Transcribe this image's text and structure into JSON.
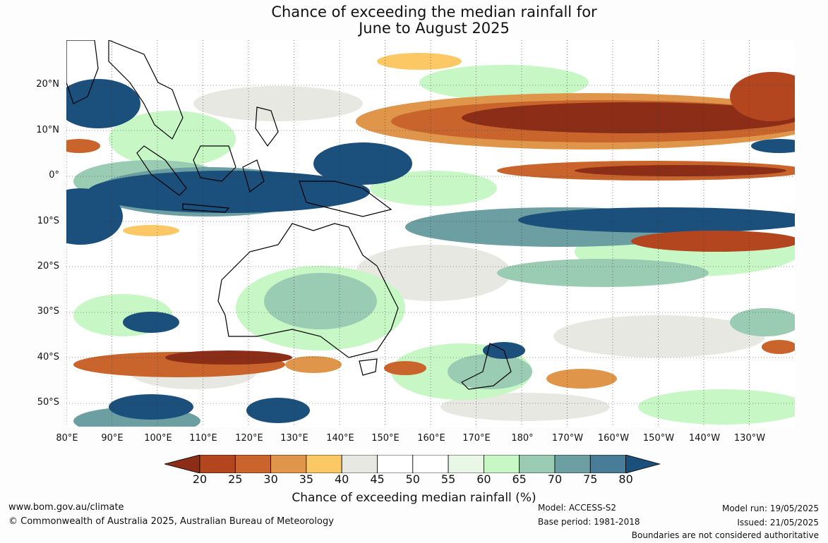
{
  "title": {
    "line1": "Chance of exceeding the median rainfall for",
    "line2": "June to August 2025"
  },
  "map": {
    "region": "Indo-Pacific and Australia",
    "lat_labels": [
      "20°N",
      "10°N",
      "0°",
      "10°S",
      "20°S",
      "30°S",
      "40°S",
      "50°S"
    ],
    "lon_labels": [
      "80°E",
      "90°E",
      "100°E",
      "110°E",
      "120°E",
      "130°E",
      "140°E",
      "150°E",
      "160°E",
      "170°E",
      "180°",
      "170°W",
      "160°W",
      "150°W",
      "140°W",
      "130°W"
    ]
  },
  "colorbar": {
    "ticks": [
      "20",
      "25",
      "30",
      "35",
      "40",
      "45",
      "50",
      "55",
      "60",
      "65",
      "70",
      "75",
      "80"
    ],
    "colors": [
      "#8b2d17",
      "#b3461f",
      "#c9652c",
      "#e0964a",
      "#fcc866",
      "#e8e8e3",
      "#ffffff",
      "#ffffff",
      "#e8f7e6",
      "#c7f7c5",
      "#99ccb2",
      "#6b9fa2",
      "#477d96",
      "#1b4f7c"
    ],
    "label": "Chance of exceeding median rainfall (%)"
  },
  "footer": {
    "url": "www.bom.gov.au/climate",
    "copyright": "© Commonwealth of Australia 2025, Australian Bureau of Meteorology",
    "model": "Model: ACCESS-S2",
    "base_period": "Base period: 1981-2018",
    "model_run": "Model run: 19/05/2025",
    "issued": "Issued: 21/05/2025",
    "disclaimer": "Boundaries are not considered authoritative"
  }
}
